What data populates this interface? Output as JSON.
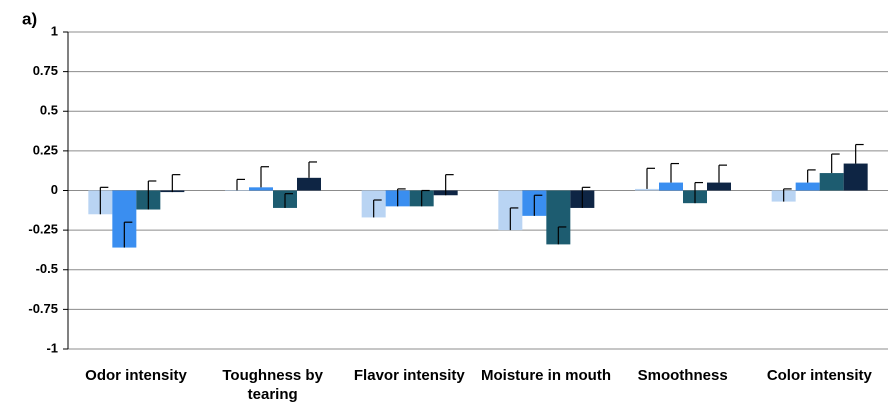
{
  "chart_data": {
    "type": "bar",
    "panel_label": "a)",
    "categories": [
      "Odor intensity",
      "Toughness by tearing",
      "Flavor intensity",
      "Moisture in mouth",
      "Smoothness",
      "Color intensity"
    ],
    "series": [
      {
        "color": "#b9d4f3",
        "values": [
          -0.15,
          0,
          -0.17,
          -0.25,
          0.01,
          -0.07
        ],
        "errors": [
          0.17,
          0.07,
          0.11,
          0.14,
          0.13,
          0.08
        ]
      },
      {
        "color": "#3a8ef0",
        "values": [
          -0.36,
          0.02,
          -0.1,
          -0.16,
          0.05,
          0.05
        ],
        "errors": [
          0.16,
          0.13,
          0.11,
          0.13,
          0.12,
          0.08
        ]
      },
      {
        "color": "#1d5c70",
        "values": [
          -0.12,
          -0.11,
          -0.1,
          -0.34,
          -0.08,
          0.11
        ],
        "errors": [
          0.18,
          0.09,
          0.1,
          0.11,
          0.13,
          0.12
        ]
      },
      {
        "color": "#0e2544",
        "values": [
          -0.01,
          0.08,
          -0.03,
          -0.11,
          0.05,
          0.17
        ],
        "errors": [
          0.11,
          0.1,
          0.13,
          0.13,
          0.11,
          0.12
        ]
      }
    ],
    "ylim": [
      -1,
      1
    ],
    "yticks": [
      -1,
      -0.75,
      -0.5,
      -0.25,
      0,
      0.25,
      0.5,
      0.75,
      1
    ],
    "grid": true
  }
}
